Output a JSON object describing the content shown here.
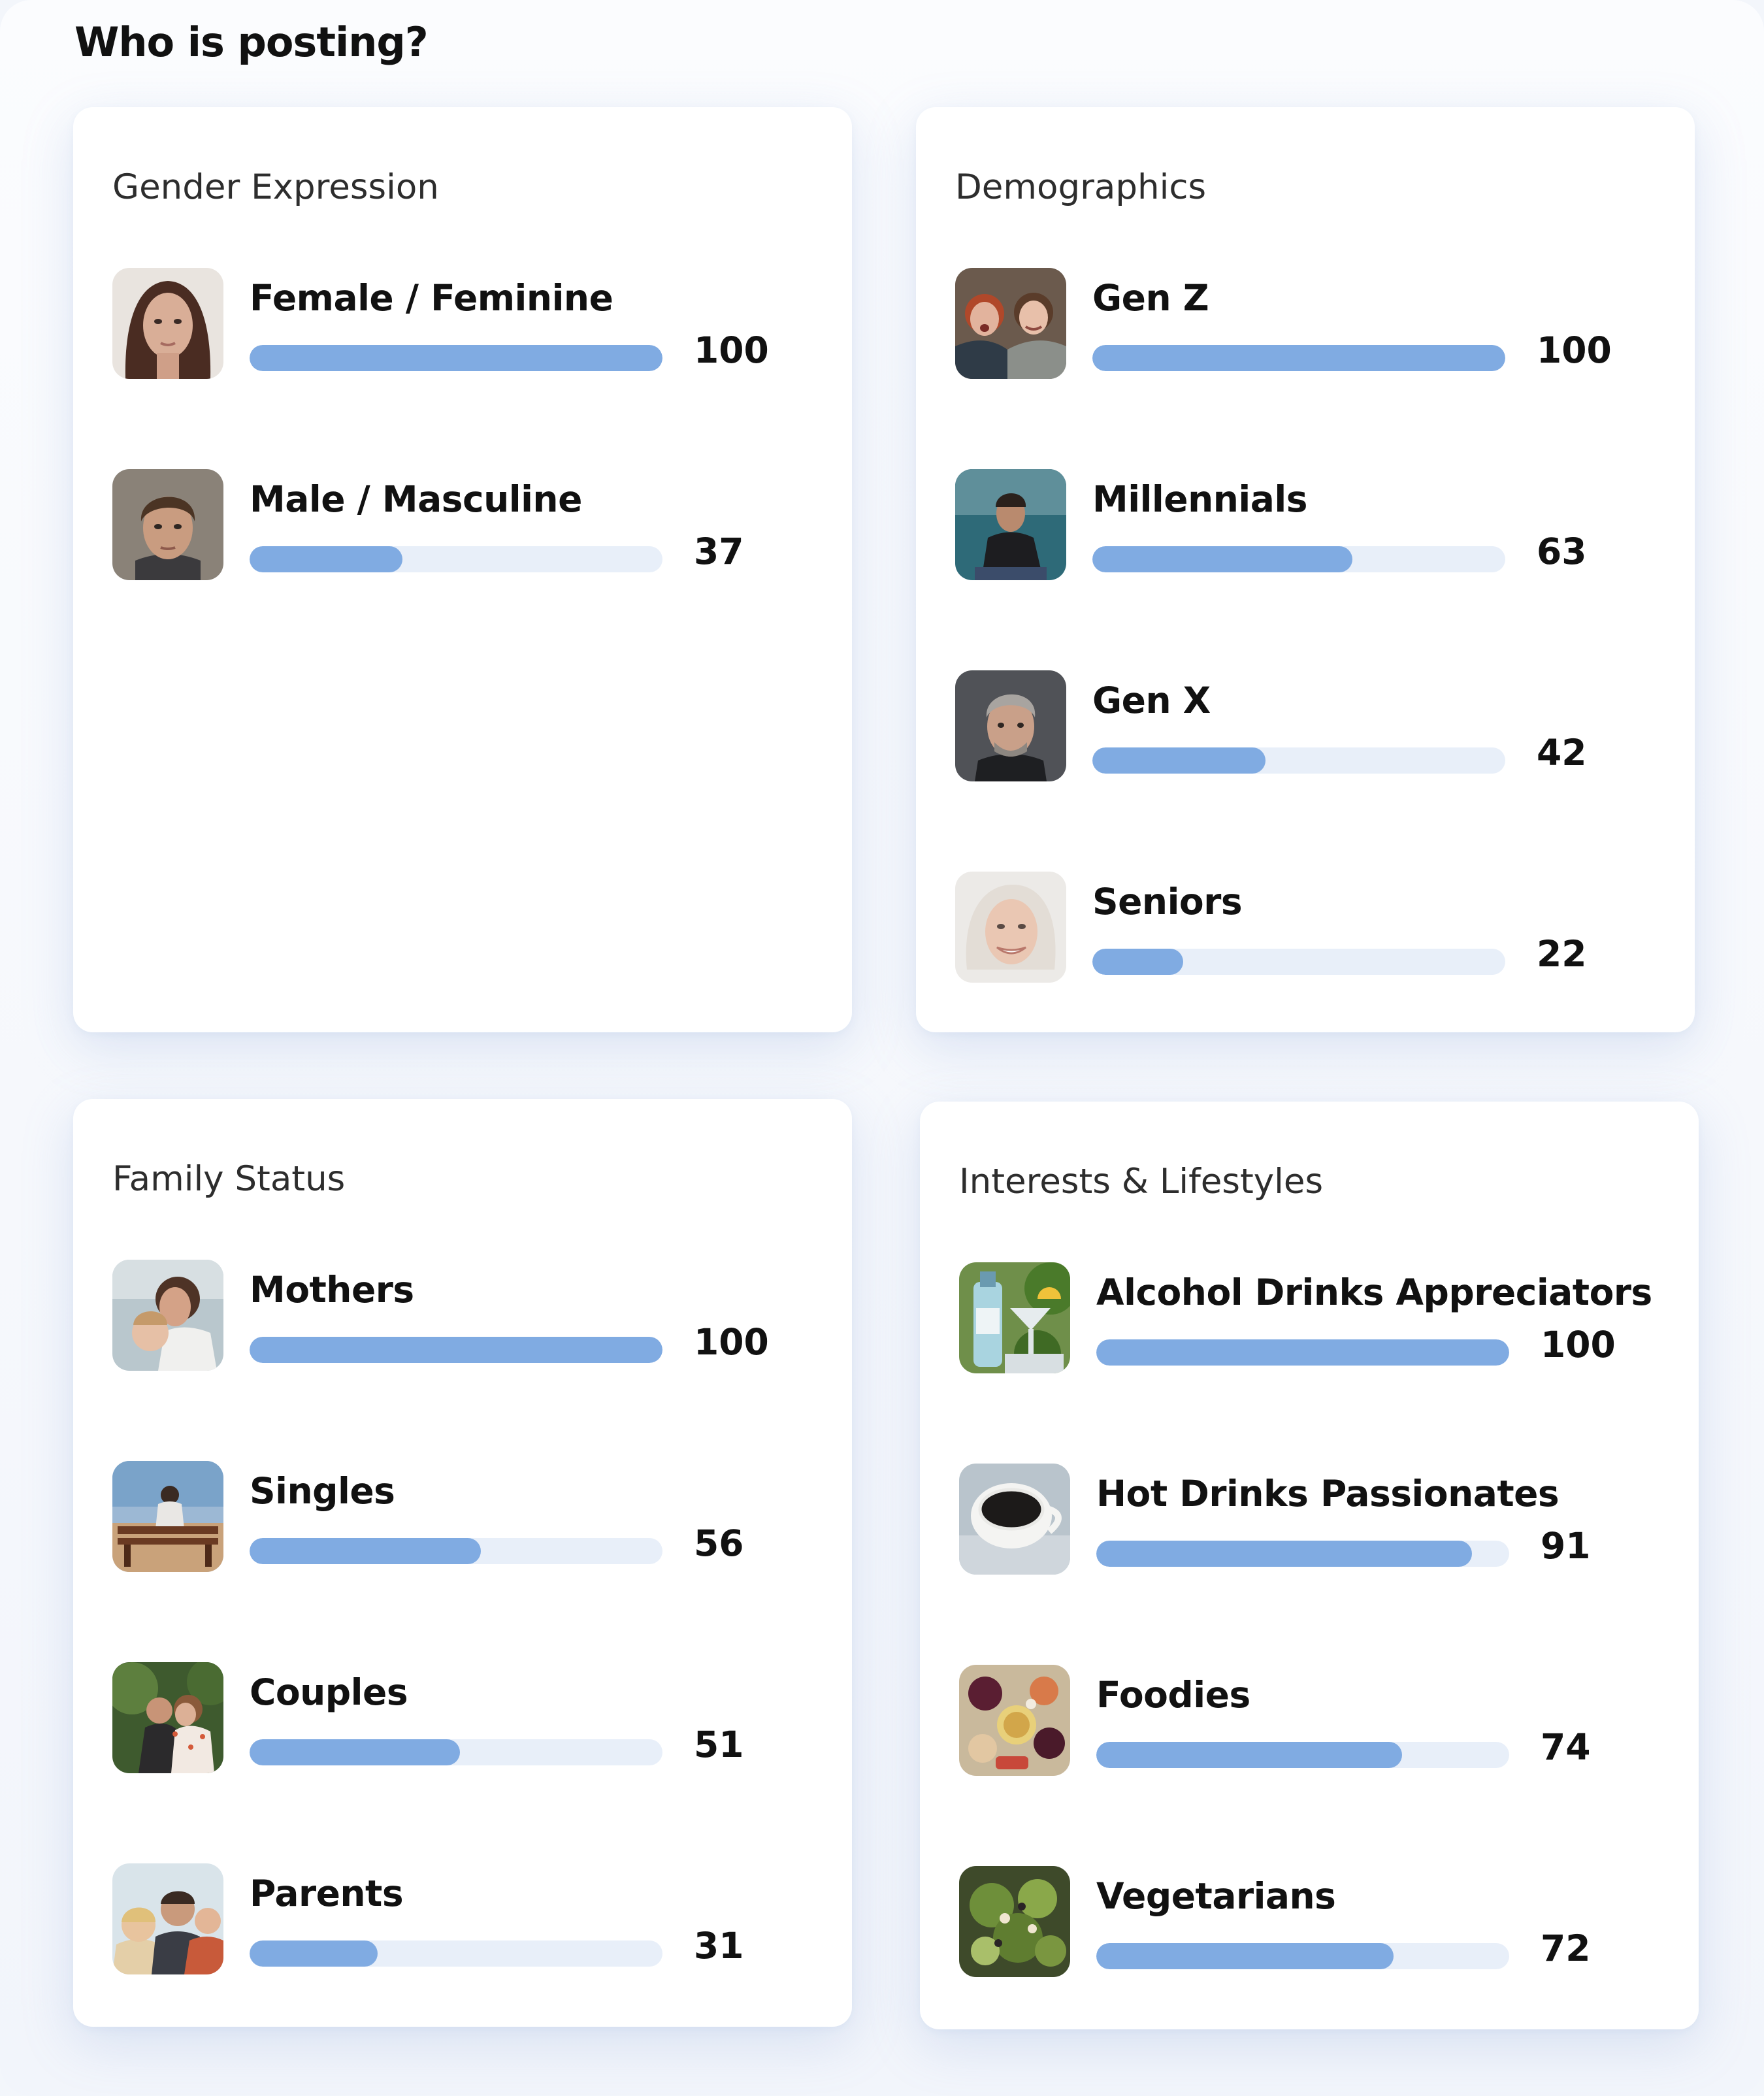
{
  "page_title": "Who is posting?",
  "colors": {
    "bar_fill": "#80abe2",
    "bar_track": "#e8eff9",
    "card_bg": "#ffffff",
    "text": "#111111"
  },
  "cards": [
    {
      "title": "Gender Expression",
      "items": [
        {
          "label": "Female / Feminine",
          "value": "100",
          "level": 1.0,
          "image": "female-portrait-photo"
        },
        {
          "label": "Male / Masculine",
          "value": "37",
          "level": 0.37,
          "image": "male-portrait-photo"
        }
      ]
    },
    {
      "title": "Demographics",
      "items": [
        {
          "label": "Gen Z",
          "value": "100",
          "level": 1.0,
          "image": "gen-z-friends-photo"
        },
        {
          "label": "Millennials",
          "value": "63",
          "level": 0.63,
          "image": "millennial-man-photo"
        },
        {
          "label": "Gen X",
          "value": "42",
          "level": 0.42,
          "image": "gen-x-man-photo"
        },
        {
          "label": "Seniors",
          "value": "22",
          "level": 0.22,
          "image": "senior-woman-photo"
        }
      ]
    },
    {
      "title": "Family Status",
      "items": [
        {
          "label": "Mothers",
          "value": "100",
          "level": 1.0,
          "image": "mother-child-photo"
        },
        {
          "label": "Singles",
          "value": "56",
          "level": 0.56,
          "image": "single-bench-photo"
        },
        {
          "label": "Couples",
          "value": "51",
          "level": 0.51,
          "image": "couple-photo"
        },
        {
          "label": "Parents",
          "value": "31",
          "level": 0.31,
          "image": "family-photo"
        }
      ]
    },
    {
      "title": "Interests & Lifestyles",
      "items": [
        {
          "label": "Alcohol Drinks Appreciators",
          "value": "100",
          "level": 1.0,
          "image": "cocktail-photo"
        },
        {
          "label": "Hot Drinks Passionates",
          "value": "91",
          "level": 0.91,
          "image": "coffee-cup-photo"
        },
        {
          "label": "Foodies",
          "value": "74",
          "level": 0.74,
          "image": "food-platter-photo"
        },
        {
          "label": "Vegetarians",
          "value": "72",
          "level": 0.72,
          "image": "salad-photo"
        }
      ]
    }
  ]
}
